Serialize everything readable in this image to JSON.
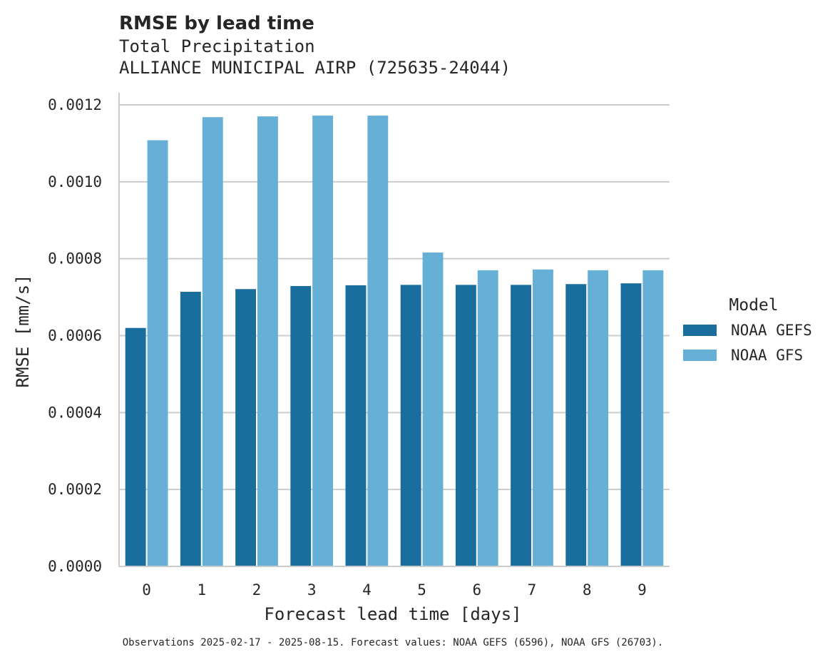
{
  "chart_data": {
    "type": "bar",
    "title": "RMSE by lead time",
    "subtitle_lines": [
      "Total Precipitation",
      "ALLIANCE MUNICIPAL AIRP (725635-24044)"
    ],
    "xlabel": "Forecast lead time [days]",
    "ylabel": "RMSE [mm/s]",
    "categories": [
      "0",
      "1",
      "2",
      "3",
      "4",
      "5",
      "6",
      "7",
      "8",
      "9"
    ],
    "ylim": [
      0,
      0.00123
    ],
    "yticks": [
      0.0,
      0.0002,
      0.0004,
      0.0006,
      0.0008,
      0.001,
      0.0012
    ],
    "ytick_labels": [
      "0.0000",
      "0.0002",
      "0.0004",
      "0.0006",
      "0.0008",
      "0.0010",
      "0.0012"
    ],
    "grid": true,
    "legend": {
      "title": "Model",
      "position": "right"
    },
    "series": [
      {
        "name": "NOAA GEFS",
        "color": "#1a6e9e",
        "values": [
          0.00062,
          0.000714,
          0.000721,
          0.000729,
          0.000731,
          0.000732,
          0.000732,
          0.000732,
          0.000734,
          0.000736
        ]
      },
      {
        "name": "NOAA GFS",
        "color": "#66afd7",
        "values": [
          0.001108,
          0.001168,
          0.00117,
          0.001172,
          0.001172,
          0.000816,
          0.00077,
          0.000772,
          0.00077,
          0.00077
        ]
      }
    ],
    "footnote": "Observations 2025-02-17 - 2025-08-15. Forecast values: NOAA GEFS (6596), NOAA GFS (26703)."
  }
}
